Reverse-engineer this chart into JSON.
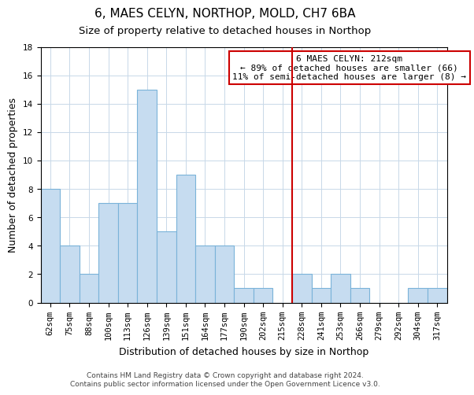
{
  "title": "6, MAES CELYN, NORTHOP, MOLD, CH7 6BA",
  "subtitle": "Size of property relative to detached houses in Northop",
  "xlabel": "Distribution of detached houses by size in Northop",
  "ylabel": "Number of detached properties",
  "bar_labels": [
    "62sqm",
    "75sqm",
    "88sqm",
    "100sqm",
    "113sqm",
    "126sqm",
    "139sqm",
    "151sqm",
    "164sqm",
    "177sqm",
    "190sqm",
    "202sqm",
    "215sqm",
    "228sqm",
    "241sqm",
    "253sqm",
    "266sqm",
    "279sqm",
    "292sqm",
    "304sqm",
    "317sqm"
  ],
  "bar_values": [
    8,
    4,
    2,
    7,
    7,
    15,
    5,
    9,
    4,
    4,
    1,
    1,
    0,
    2,
    1,
    2,
    1,
    0,
    0,
    1,
    1
  ],
  "bar_color": "#c6dcf0",
  "bar_edge_color": "#7ab3d9",
  "vline_x": 12.5,
  "vline_color": "#cc0000",
  "annotation_title": "6 MAES CELYN: 212sqm",
  "annotation_line1": "← 89% of detached houses are smaller (66)",
  "annotation_line2": "11% of semi-detached houses are larger (8) →",
  "annotation_box_color": "#ffffff",
  "annotation_box_edge": "#cc0000",
  "ylim": [
    0,
    18
  ],
  "yticks": [
    0,
    2,
    4,
    6,
    8,
    10,
    12,
    14,
    16,
    18
  ],
  "footer_line1": "Contains HM Land Registry data © Crown copyright and database right 2024.",
  "footer_line2": "Contains public sector information licensed under the Open Government Licence v3.0.",
  "background_color": "#ffffff",
  "grid_color": "#c8d8e8",
  "title_fontsize": 11,
  "subtitle_fontsize": 9.5,
  "axis_label_fontsize": 9,
  "tick_fontsize": 7.5,
  "footer_fontsize": 6.5,
  "annotation_fontsize": 8
}
